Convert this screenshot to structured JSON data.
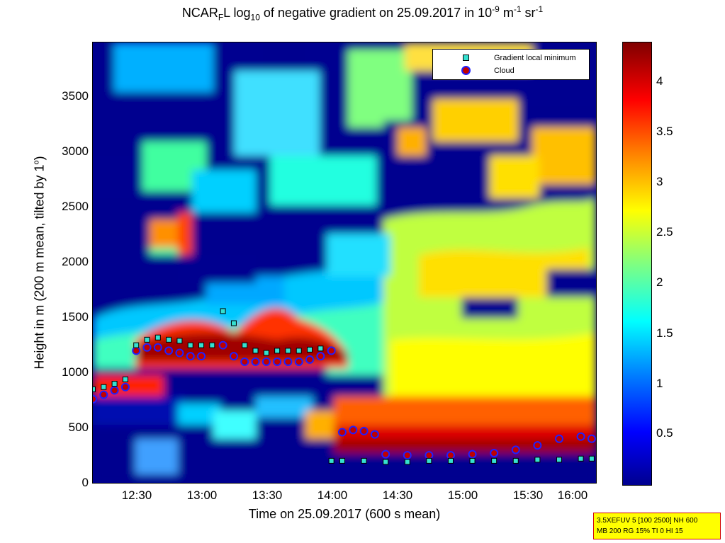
{
  "chart_data": {
    "type": "heatmap",
    "title_parts": {
      "a": "NCAR",
      "b": "F",
      "c": "L log",
      "d": "10",
      "e": " of negative gradient on 25.09.2017 in 10",
      "f": "-9",
      "g": " m",
      "h": "-1",
      "i": " sr",
      "j": "-1"
    },
    "xlabel": "Time on 25.09.2017 (600 s mean)",
    "ylabel_main": "Height in m (200 m mean, tilted by 1",
    "ylabel_deg": "o",
    "ylabel_end": ")",
    "x_ticks": [
      "12:30",
      "13:00",
      "13:30",
      "14:00",
      "14:30",
      "15:00",
      "15:30",
      "16:00"
    ],
    "y_ticks": [
      "0",
      "500",
      "1000",
      "1500",
      "2000",
      "2500",
      "3000",
      "3500"
    ],
    "xlim": [
      "12:15",
      "16:07"
    ],
    "ylim": [
      0,
      4000
    ],
    "colorbar_ticks": [
      "0.5",
      "1",
      "1.5",
      "2",
      "2.5",
      "3",
      "3.5",
      "4"
    ],
    "colorbar_range": [
      0,
      4.4
    ],
    "colormap": "jet",
    "legend": [
      {
        "label": "Gradient local minimum",
        "marker": "square",
        "color": "#35e0d0"
      },
      {
        "label": "Cloud",
        "marker": "circle",
        "color": "#c00000",
        "edge": "#2020ff"
      }
    ],
    "legend_position": "top-right",
    "series": [
      {
        "name": "Gradient local minimum",
        "times": [
          "12:15",
          "12:20",
          "12:25",
          "12:30",
          "12:35",
          "12:40",
          "12:45",
          "12:50",
          "12:55",
          "13:00",
          "13:05",
          "13:10",
          "13:15",
          "13:20",
          "13:25",
          "13:30",
          "13:35",
          "13:40",
          "13:45",
          "13:50",
          "13:55",
          "14:00",
          "14:05",
          "14:10",
          "14:20",
          "14:30",
          "14:40",
          "14:50",
          "15:00",
          "15:10",
          "15:20",
          "15:30",
          "15:40",
          "15:50",
          "16:00",
          "16:05"
        ],
        "heights": [
          850,
          870,
          900,
          940,
          1250,
          1300,
          1320,
          1300,
          1290,
          1250,
          1250,
          1250,
          1560,
          1450,
          1250,
          1200,
          1180,
          1200,
          1200,
          1200,
          1210,
          1220,
          200,
          200,
          200,
          190,
          190,
          200,
          200,
          200,
          200,
          200,
          210,
          210,
          220,
          220
        ]
      },
      {
        "name": "Cloud",
        "times": [
          "12:15",
          "12:20",
          "12:25",
          "12:30",
          "12:35",
          "12:40",
          "12:45",
          "12:50",
          "12:55",
          "13:00",
          "13:05",
          "13:15",
          "13:20",
          "13:25",
          "13:30",
          "13:35",
          "13:40",
          "13:45",
          "13:50",
          "13:55",
          "14:00",
          "14:05",
          "14:10",
          "14:15",
          "14:20",
          "14:25",
          "14:30",
          "14:40",
          "14:50",
          "15:00",
          "15:10",
          "15:20",
          "15:30",
          "15:40",
          "15:50",
          "16:00",
          "16:05"
        ],
        "heights": [
          760,
          800,
          840,
          870,
          1200,
          1230,
          1230,
          1200,
          1180,
          1150,
          1150,
          1250,
          1150,
          1100,
          1100,
          1100,
          1100,
          1100,
          1100,
          1120,
          1150,
          1200,
          460,
          480,
          470,
          440,
          260,
          250,
          250,
          250,
          260,
          270,
          300,
          340,
          400,
          420,
          400
        ]
      }
    ]
  },
  "info_box": {
    "line1": "3.5XEFUV 5 [100 2500] NH 600",
    "line2": "MB 200 RG 15% TI 0 HI 15"
  }
}
